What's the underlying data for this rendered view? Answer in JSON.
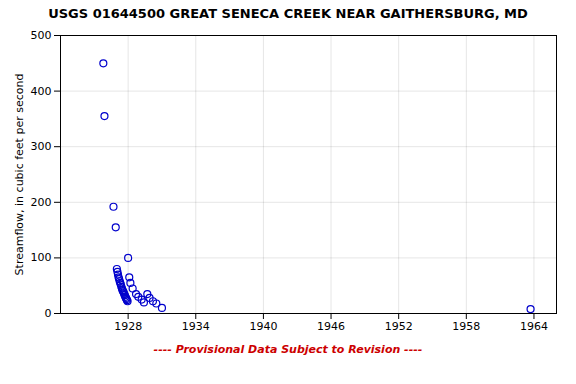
{
  "chart_data": {
    "type": "scatter",
    "title": "USGS 01644500 GREAT SENECA CREEK NEAR GAITHERSBURG, MD",
    "ylabel": "Streamflow, in cubic feet per second",
    "x": [
      1925.8,
      1925.9,
      1926.7,
      1926.9,
      1927.0,
      1927.05,
      1927.1,
      1927.15,
      1927.2,
      1927.25,
      1927.3,
      1927.35,
      1927.4,
      1927.45,
      1927.5,
      1927.55,
      1927.6,
      1927.65,
      1927.7,
      1927.75,
      1927.8,
      1927.85,
      1927.9,
      1927.95,
      1928.0,
      1928.1,
      1928.2,
      1928.4,
      1928.7,
      1928.9,
      1929.2,
      1929.4,
      1929.7,
      1929.9,
      1930.2,
      1930.5,
      1931.0,
      1963.7
    ],
    "values": [
      450,
      355,
      192,
      155,
      80,
      75,
      70,
      65,
      62,
      58,
      55,
      52,
      48,
      45,
      42,
      40,
      38,
      35,
      33,
      30,
      28,
      26,
      24,
      22,
      100,
      65,
      55,
      45,
      35,
      30,
      25,
      20,
      35,
      28,
      22,
      18,
      10,
      8
    ],
    "color": "#0000cc",
    "marker": "circle",
    "xlim": [
      1922,
      1966
    ],
    "xticks": [
      1928,
      1934,
      1940,
      1946,
      1952,
      1958,
      1964
    ],
    "ylim": [
      0,
      500
    ],
    "yticks": [
      0,
      100,
      200,
      300,
      400,
      500
    ],
    "grid": true,
    "annotations": [
      {
        "text": "---- Provisional Data Subject to Revision ----",
        "color": "#cc0000"
      }
    ]
  }
}
